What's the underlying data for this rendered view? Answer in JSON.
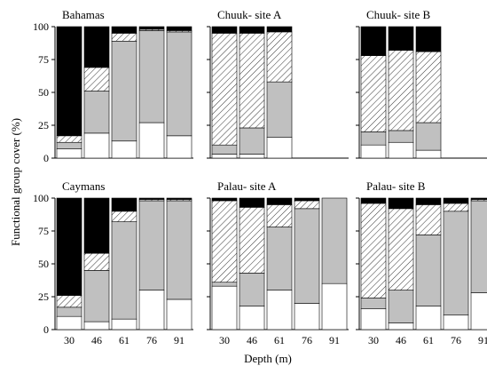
{
  "figure": {
    "ylabel": "Functional group cover (%)",
    "xlabel": "Depth (m)"
  },
  "colors": {
    "black": "#000000",
    "hatched": "#ffffff",
    "gray": "#c0c0c0",
    "white": "#ffffff"
  },
  "chart_data": {
    "type": "bar",
    "stacked": true,
    "categories": [
      "30",
      "46",
      "61",
      "76",
      "91"
    ],
    "yticks": [
      0,
      25,
      50,
      75,
      100
    ],
    "ylim": [
      0,
      100
    ],
    "xlabel": "Depth (m)",
    "ylabel": "Functional group cover (%)",
    "series_fills": [
      "white",
      "gray",
      "hatched",
      "black"
    ],
    "panels": [
      {
        "title": "Bahamas",
        "bars": [
          {
            "white": 7,
            "gray": 5,
            "hatched": 5,
            "black": 83
          },
          {
            "white": 19,
            "gray": 32,
            "hatched": 18,
            "black": 31
          },
          {
            "white": 13,
            "gray": 76,
            "hatched": 6,
            "black": 5
          },
          {
            "white": 27,
            "gray": 70,
            "hatched": 1,
            "black": 2
          },
          {
            "white": 17,
            "gray": 79,
            "hatched": 1,
            "black": 3
          }
        ]
      },
      {
        "title": "Chuuk- site A",
        "bars": [
          {
            "white": 3,
            "gray": 7,
            "hatched": 85,
            "black": 5
          },
          {
            "white": 3,
            "gray": 20,
            "hatched": 72,
            "black": 5
          },
          {
            "white": 16,
            "gray": 42,
            "hatched": 38,
            "black": 4
          },
          null,
          null
        ]
      },
      {
        "title": "Chuuk- site B",
        "bars": [
          {
            "white": 10,
            "gray": 10,
            "hatched": 58,
            "black": 22
          },
          {
            "white": 12,
            "gray": 9,
            "hatched": 61,
            "black": 18
          },
          {
            "white": 6,
            "gray": 21,
            "hatched": 54,
            "black": 19
          },
          null,
          null
        ]
      },
      {
        "title": "Caymans",
        "bars": [
          {
            "white": 10,
            "gray": 7,
            "hatched": 9,
            "black": 74
          },
          {
            "white": 6,
            "gray": 39,
            "hatched": 13,
            "black": 42
          },
          {
            "white": 8,
            "gray": 74,
            "hatched": 8,
            "black": 10
          },
          {
            "white": 30,
            "gray": 68,
            "hatched": 1,
            "black": 1
          },
          {
            "white": 23,
            "gray": 75,
            "hatched": 1,
            "black": 1
          }
        ]
      },
      {
        "title": "Palau- site A",
        "bars": [
          {
            "white": 33,
            "gray": 3,
            "hatched": 62,
            "black": 2
          },
          {
            "white": 18,
            "gray": 25,
            "hatched": 50,
            "black": 7
          },
          {
            "white": 30,
            "gray": 48,
            "hatched": 17,
            "black": 5
          },
          {
            "white": 20,
            "gray": 72,
            "hatched": 6,
            "black": 2
          },
          {
            "white": 35,
            "gray": 65,
            "hatched": 0,
            "black": 0
          }
        ]
      },
      {
        "title": "Palau- site B",
        "bars": [
          {
            "white": 16,
            "gray": 8,
            "hatched": 72,
            "black": 4
          },
          {
            "white": 5,
            "gray": 25,
            "hatched": 62,
            "black": 8
          },
          {
            "white": 18,
            "gray": 54,
            "hatched": 23,
            "black": 5
          },
          {
            "white": 11,
            "gray": 79,
            "hatched": 6,
            "black": 4
          },
          {
            "white": 28,
            "gray": 70,
            "hatched": 1,
            "black": 1
          }
        ]
      }
    ]
  }
}
